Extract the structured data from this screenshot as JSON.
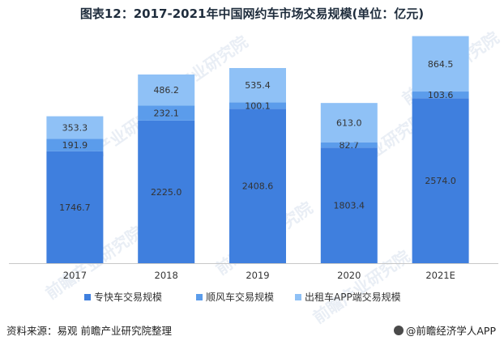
{
  "title": "图表12：2017-2021年中国网约车市场交易规模(单位：亿元)",
  "source": "资料来源：易观 前瞻产业研究院整理",
  "brand": "@前瞻经济学人APP",
  "watermark": "前瞻产业研究院",
  "colors": {
    "series1": "#3f7fde",
    "series2": "#5b9ceb",
    "series3": "#8fc1f6",
    "axis": "#c8c8c8",
    "text": "#333333"
  },
  "chart_data": {
    "type": "bar",
    "stacked": true,
    "categories": [
      "2017",
      "2018",
      "2019",
      "2020",
      "2021E"
    ],
    "series": [
      {
        "name": "专快车交易规模",
        "values": [
          1746.7,
          2225.0,
          2408.6,
          1803.4,
          2574.0
        ],
        "labels": [
          "1746.7",
          "2225.0",
          "2408.6",
          "1803.4",
          "2574.0"
        ]
      },
      {
        "name": "顺风车交易规模",
        "values": [
          191.9,
          232.1,
          100.1,
          82.7,
          103.6
        ],
        "labels": [
          "191.9",
          "232.1",
          "100.1",
          "82.7",
          "103.6"
        ]
      },
      {
        "name": "出租车APP端交易规模",
        "values": [
          353.3,
          486.2,
          535.4,
          613.0,
          864.5
        ],
        "labels": [
          "353.3",
          "486.2",
          "535.4",
          "613.0",
          "864.5"
        ]
      }
    ],
    "ylim": [
      0,
      3600
    ],
    "legend": "bottom"
  }
}
